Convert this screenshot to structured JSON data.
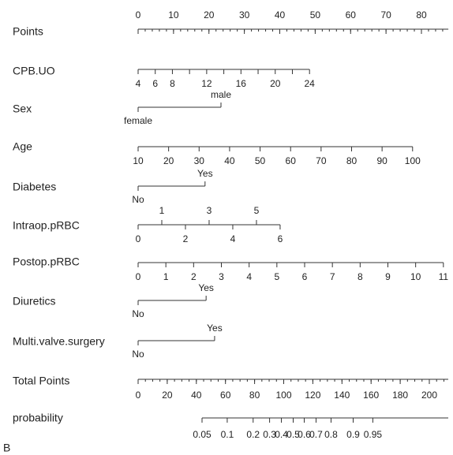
{
  "figure_label": "B",
  "points_axis": {
    "label": "Points",
    "ticks": [
      0,
      10,
      20,
      30,
      40,
      50,
      60,
      70,
      80
    ],
    "minor_step": 2,
    "max": 87.6
  },
  "rows": [
    {
      "label": "CPB.UO",
      "range": [
        4,
        24
      ],
      "points": [
        0,
        48.4
      ],
      "ticks": [
        4,
        6,
        8,
        12,
        16,
        20,
        24
      ],
      "minor_ticks": [
        10,
        14,
        18,
        22
      ]
    },
    {
      "label": "Sex",
      "levels": [
        {
          "name": "female",
          "points": 0,
          "side": "below"
        },
        {
          "name": "male",
          "points": 23.4,
          "side": "above"
        }
      ]
    },
    {
      "label": "Age",
      "range": [
        10,
        100
      ],
      "points": [
        0,
        77.5
      ],
      "ticks": [
        10,
        20,
        30,
        40,
        50,
        60,
        70,
        80,
        90,
        100
      ]
    },
    {
      "label": "Diabetes",
      "levels": [
        {
          "name": "No",
          "points": 0,
          "side": "below"
        },
        {
          "name": "Yes",
          "points": 18.9,
          "side": "above"
        }
      ]
    },
    {
      "label": "Intraop.pRBC",
      "range": [
        0,
        6
      ],
      "points": [
        0,
        40.1
      ],
      "ticks": [
        0,
        2,
        4,
        6
      ],
      "ticks_above": [
        1,
        3,
        5
      ]
    },
    {
      "label": "Postop.pRBC",
      "range": [
        0,
        11
      ],
      "points": [
        0,
        86.2
      ],
      "ticks": [
        0,
        1,
        2,
        3,
        4,
        5,
        6,
        7,
        8,
        9,
        10,
        11
      ]
    },
    {
      "label": "Diuretics",
      "levels": [
        {
          "name": "No",
          "points": 0,
          "side": "below"
        },
        {
          "name": "Yes",
          "points": 19.2,
          "side": "above"
        }
      ]
    },
    {
      "label": "Multi.valve.surgery",
      "levels": [
        {
          "name": "No",
          "points": 0,
          "side": "below"
        },
        {
          "name": "Yes",
          "points": 21.6,
          "side": "above"
        }
      ]
    }
  ],
  "total_axis": {
    "label": "Total Points",
    "ticks": [
      0,
      20,
      40,
      60,
      80,
      100,
      120,
      140,
      160,
      180,
      200
    ],
    "minor_step": 5,
    "max": 213
  },
  "probability_axis": {
    "label": "probability",
    "ticks": [
      {
        "value": 0.05,
        "total_points": 43.9
      },
      {
        "value": 0.1,
        "total_points": 61.2
      },
      {
        "value": 0.2,
        "total_points": 79
      },
      {
        "value": 0.3,
        "total_points": 90.3
      },
      {
        "value": 0.4,
        "total_points": 98.4
      },
      {
        "value": 0.5,
        "total_points": 106.5
      },
      {
        "value": 0.6,
        "total_points": 114.1
      },
      {
        "value": 0.7,
        "total_points": 122.2
      },
      {
        "value": 0.8,
        "total_points": 132.5
      },
      {
        "value": 0.9,
        "total_points": 147.7
      },
      {
        "value": 0.95,
        "total_points": 161.2
      }
    ],
    "max": 213
  }
}
